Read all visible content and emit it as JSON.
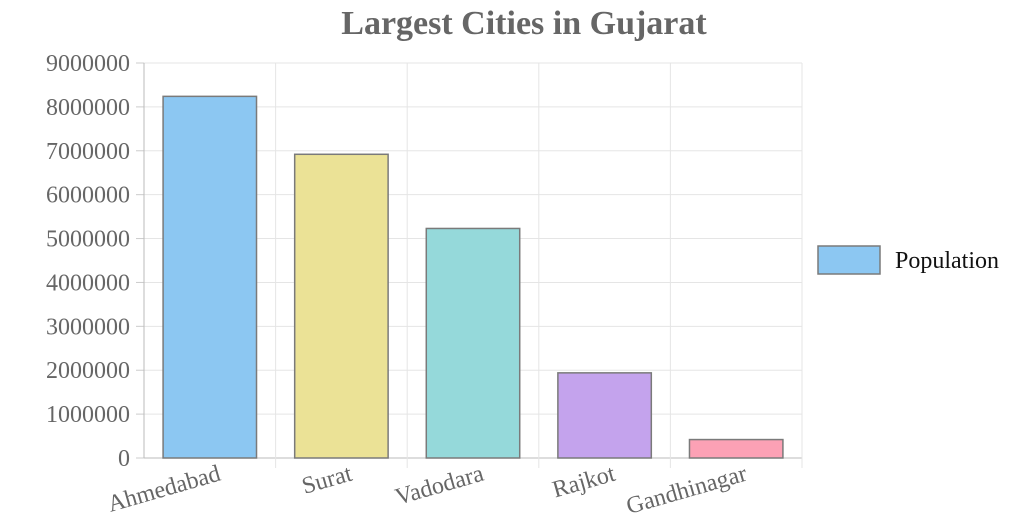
{
  "chart_data": {
    "type": "bar",
    "title": "Largest Cities in Gujarat",
    "categories": [
      "Ahmedabad",
      "Surat",
      "Vadodara",
      "Rajkot",
      "Gandhinagar"
    ],
    "series": [
      {
        "name": "Population",
        "values": [
          8240000,
          6920000,
          5230000,
          1940000,
          420000
        ]
      }
    ],
    "bar_colors": [
      "#8cc7f2",
      "#ebe296",
      "#95d9da",
      "#c4a3ed",
      "#fca1b5"
    ],
    "bar_border_color": "#7a7a7a",
    "legend_swatch_color": "#8cc7f2",
    "ylim": [
      0,
      9000000
    ],
    "yticks": [
      0,
      1000000,
      2000000,
      3000000,
      4000000,
      5000000,
      6000000,
      7000000,
      8000000,
      9000000
    ],
    "xlabel": "",
    "ylabel": "",
    "grid": true,
    "legend_position": "right"
  }
}
